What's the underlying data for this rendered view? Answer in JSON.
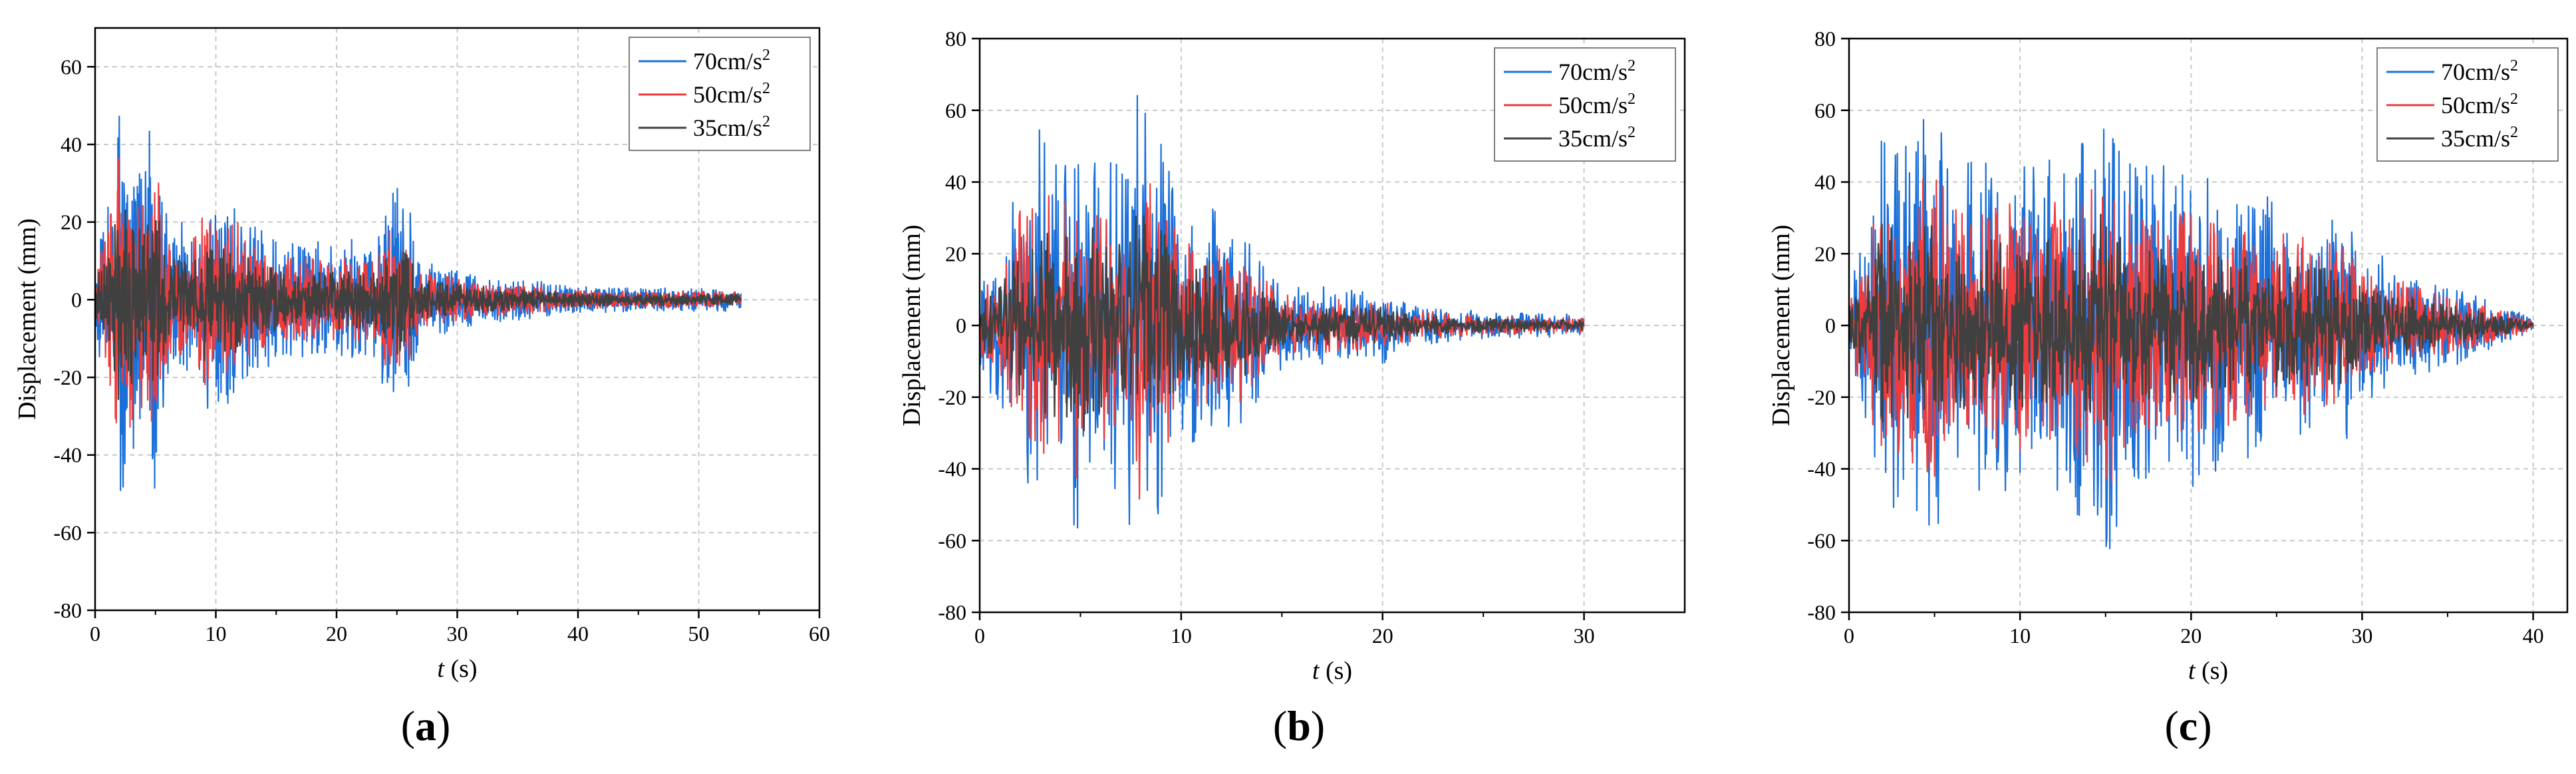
{
  "chart_data": [
    {
      "type": "line",
      "panel_label": "(a)",
      "panel_letter": "a",
      "xlabel_var": "t",
      "xlabel_unit": "(s)",
      "ylabel": "Displacement (mm)",
      "xlim": [
        0,
        60
      ],
      "ylim": [
        -80,
        70
      ],
      "xticks": [
        0,
        10,
        20,
        30,
        40,
        50,
        60
      ],
      "yticks": [
        -80,
        -60,
        -40,
        -20,
        0,
        20,
        40,
        60
      ],
      "grid": true,
      "legend_position": "top-right",
      "t_end": 53.5,
      "envelope": [
        [
          0,
          10
        ],
        [
          1,
          25
        ],
        [
          2,
          55
        ],
        [
          3,
          45
        ],
        [
          4,
          40
        ],
        [
          5,
          50
        ],
        [
          6,
          22
        ],
        [
          8,
          20
        ],
        [
          9,
          32
        ],
        [
          10,
          26
        ],
        [
          11,
          27
        ],
        [
          12,
          30
        ],
        [
          13,
          20
        ],
        [
          15,
          16
        ],
        [
          17,
          15
        ],
        [
          19,
          15
        ],
        [
          21,
          16
        ],
        [
          23,
          14
        ],
        [
          24,
          24
        ],
        [
          25,
          29
        ],
        [
          26,
          24
        ],
        [
          27,
          10
        ],
        [
          30,
          8
        ],
        [
          33,
          6
        ],
        [
          36,
          5
        ],
        [
          40,
          3.5
        ],
        [
          45,
          3
        ],
        [
          50,
          3
        ],
        [
          53.5,
          3
        ]
      ],
      "series": [
        {
          "name": "70cm/s²",
          "label": "70cm/s",
          "sup": "2",
          "color": "#1a6fd8",
          "amplitude": 1.0,
          "seed": 11
        },
        {
          "name": "50cm/s²",
          "label": "50cm/s",
          "sup": "2",
          "color": "#ef3b3b",
          "amplitude": 0.72,
          "seed": 23
        },
        {
          "name": "35cm/s²",
          "label": "35cm/s",
          "sup": "2",
          "color": "#404040",
          "amplitude": 0.5,
          "seed": 37
        }
      ]
    },
    {
      "type": "line",
      "panel_label": "(b)",
      "panel_letter": "b",
      "xlabel_var": "t",
      "xlabel_unit": "(s)",
      "ylabel": "Displacement (mm)",
      "xlim": [
        0,
        35
      ],
      "ylim": [
        -80,
        80
      ],
      "xticks": [
        0,
        10,
        20,
        30
      ],
      "yticks": [
        -80,
        -60,
        -40,
        -20,
        0,
        20,
        40,
        60,
        80
      ],
      "grid": true,
      "legend_position": "top-right",
      "t_end": 30,
      "envelope": [
        [
          0,
          12
        ],
        [
          1,
          25
        ],
        [
          2,
          45
        ],
        [
          3,
          55
        ],
        [
          4,
          50
        ],
        [
          5,
          65
        ],
        [
          6,
          50
        ],
        [
          7,
          45
        ],
        [
          8,
          70
        ],
        [
          9,
          60
        ],
        [
          10,
          30
        ],
        [
          11,
          38
        ],
        [
          12,
          35
        ],
        [
          13,
          30
        ],
        [
          14,
          20
        ],
        [
          15,
          12
        ],
        [
          17,
          11
        ],
        [
          19,
          10
        ],
        [
          20,
          11
        ],
        [
          21,
          7
        ],
        [
          23,
          5
        ],
        [
          25,
          4
        ],
        [
          27,
          3.5
        ],
        [
          30,
          3
        ]
      ],
      "series": [
        {
          "name": "70cm/s²",
          "label": "70cm/s",
          "sup": "2",
          "color": "#1a6fd8",
          "amplitude": 1.0,
          "seed": 41
        },
        {
          "name": "50cm/s²",
          "label": "50cm/s",
          "sup": "2",
          "color": "#ef3b3b",
          "amplitude": 0.72,
          "seed": 53
        },
        {
          "name": "35cm/s²",
          "label": "35cm/s",
          "sup": "2",
          "color": "#404040",
          "amplitude": 0.5,
          "seed": 67
        }
      ]
    },
    {
      "type": "line",
      "panel_label": "(c)",
      "panel_letter": "c",
      "xlabel_var": "t",
      "xlabel_unit": "(s)",
      "ylabel": "Displacement (mm)",
      "xlim": [
        0,
        42
      ],
      "ylim": [
        -80,
        80
      ],
      "xticks": [
        0,
        10,
        20,
        30,
        40
      ],
      "yticks": [
        -80,
        -60,
        -40,
        -20,
        0,
        20,
        40,
        60,
        80
      ],
      "grid": true,
      "legend_position": "top-right",
      "t_end": 40,
      "envelope": [
        [
          0,
          10
        ],
        [
          1,
          30
        ],
        [
          2,
          60
        ],
        [
          3,
          50
        ],
        [
          4,
          55
        ],
        [
          5,
          65
        ],
        [
          6,
          45
        ],
        [
          8,
          50
        ],
        [
          10,
          50
        ],
        [
          12,
          50
        ],
        [
          14,
          55
        ],
        [
          15,
          68
        ],
        [
          16,
          50
        ],
        [
          18,
          45
        ],
        [
          20,
          46
        ],
        [
          22,
          40
        ],
        [
          24,
          38
        ],
        [
          26,
          36
        ],
        [
          28,
          32
        ],
        [
          29,
          35
        ],
        [
          30,
          22
        ],
        [
          32,
          18
        ],
        [
          34,
          14
        ],
        [
          36,
          10
        ],
        [
          38,
          6
        ],
        [
          40,
          2
        ]
      ],
      "series": [
        {
          "name": "70cm/s²",
          "label": "70cm/s",
          "sup": "2",
          "color": "#1a6fd8",
          "amplitude": 1.0,
          "seed": 71
        },
        {
          "name": "50cm/s²",
          "label": "50cm/s",
          "sup": "2",
          "color": "#ef3b3b",
          "amplitude": 0.72,
          "seed": 83
        },
        {
          "name": "35cm/s²",
          "label": "35cm/s",
          "sup": "2",
          "color": "#404040",
          "amplitude": 0.5,
          "seed": 97
        }
      ]
    }
  ]
}
